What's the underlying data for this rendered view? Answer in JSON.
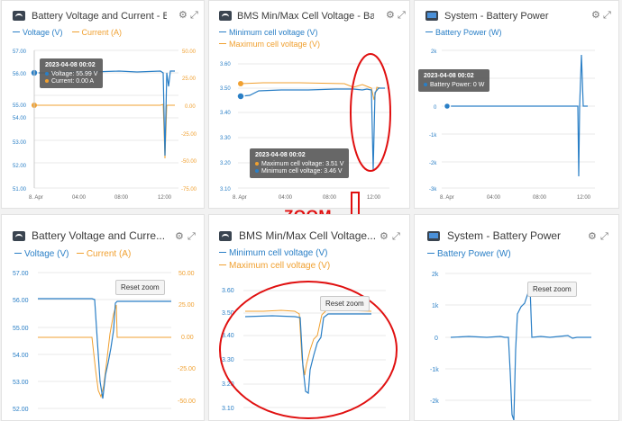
{
  "top": {
    "w1": {
      "title": "Battery Voltage and Current - Ba...",
      "legend": [
        "Voltage (V)",
        "Current (A)"
      ],
      "y_left": [
        "56.00",
        "55.00",
        "54.00",
        "53.00",
        "52.00",
        "51.00"
      ],
      "y_left_top": "57.00",
      "y_right": [
        "50.00",
        "25.00",
        "0.00",
        "-25.00",
        "-50.00",
        "-75.00"
      ],
      "x": [
        "8. Apr",
        "04:00",
        "08:00",
        "12:00"
      ],
      "tooltip": {
        "time": "2023-04-08 00:02",
        "rows": [
          "Voltage: 55.99 V",
          "Current: 0.00 A"
        ]
      }
    },
    "w2": {
      "title": "BMS Min/Max Cell Voltage - Batt...",
      "legend": [
        "Minimum cell voltage (V)",
        "Maximum cell voltage (V)"
      ],
      "y_left": [
        "3.60",
        "3.50",
        "3.40",
        "3.30",
        "3.20",
        "3.10"
      ],
      "x": [
        "8. Apr",
        "04:00",
        "08:00",
        "12:00"
      ],
      "tooltip": {
        "time": "2023-04-08 00:02",
        "rows": [
          "Maximum cell voltage: 3.51 V",
          "Minimum cell voltage: 3.46 V"
        ]
      }
    },
    "w3": {
      "title": "System - Battery Power",
      "legend": [
        "Battery Power (W)"
      ],
      "y_left": [
        "2k",
        "1k",
        "0",
        "-1k",
        "-2k",
        "-3k"
      ],
      "x": [
        "8. Apr",
        "04:00",
        "08:00",
        "12:00"
      ],
      "tooltip": {
        "time": "2023-04-08 00:02",
        "rows": [
          "Battery Power: 0 W"
        ]
      }
    }
  },
  "bottom": {
    "w1": {
      "title": "Battery Voltage and Curre...",
      "legend": [
        "Voltage (V)",
        "Current (A)"
      ],
      "y_left": [
        "57.00",
        "56.00",
        "55.00",
        "54.00",
        "53.00",
        "52.00"
      ],
      "y_right": [
        "50.00",
        "25.00",
        "0.00",
        "-25.00",
        "-50.00"
      ],
      "reset": "Reset zoom"
    },
    "w2": {
      "title": "BMS Min/Max Cell Voltage...",
      "legend": [
        "Minimum cell voltage (V)",
        "Maximum cell voltage (V)"
      ],
      "y_left": [
        "3.60",
        "3.50",
        "3.40",
        "3.30",
        "3.20",
        "3.10"
      ],
      "reset": "Reset zoom"
    },
    "w3": {
      "title": "System - Battery Power",
      "legend": [
        "Battery Power (W)"
      ],
      "y_left": [
        "2k",
        "1k",
        "0",
        "-1k",
        "-2k"
      ],
      "reset": "Reset zoom"
    }
  },
  "annotation": {
    "zoom_label": "ZOOM"
  },
  "colors": {
    "voltage": "#2a7fc6",
    "current": "#f0a030",
    "annotation": "#e01010"
  },
  "icons": {
    "settings": "gear-icon",
    "expand": "expand-icon"
  }
}
